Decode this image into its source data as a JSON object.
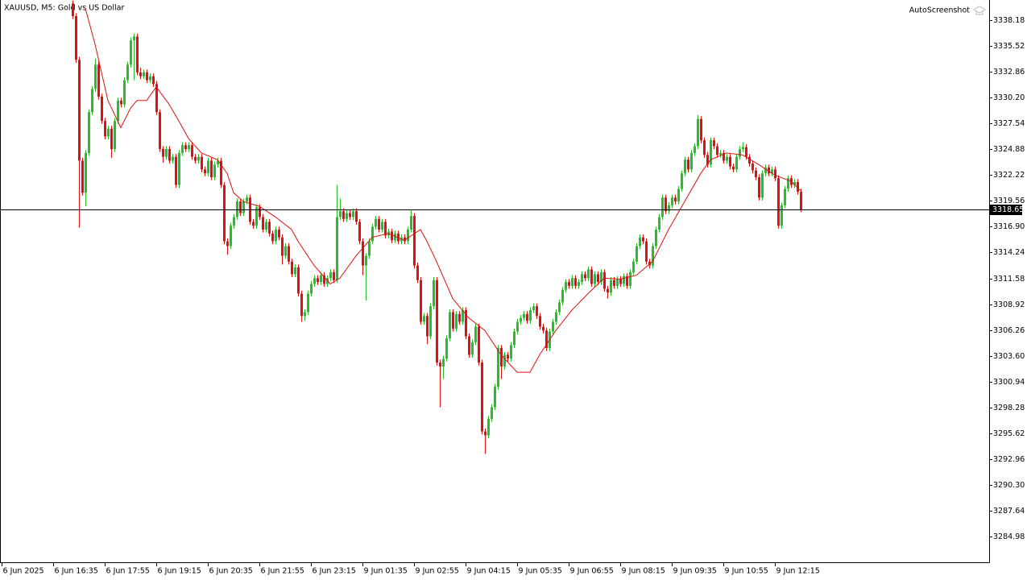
{
  "chart_data": {
    "type": "candlestick",
    "title": "XAUUSD, M5:  Gold vs US Dollar",
    "watermark": "AutoScreenshot",
    "up_color": "#26c026",
    "down_color": "#e01010",
    "xlim": [
      -0.5,
      306.5
    ],
    "xticks": [
      {
        "value": 0,
        "label": "6 Jun 2025"
      },
      {
        "value": 16,
        "label": "6 Jun 16:35"
      },
      {
        "value": 32,
        "label": "6 Jun 17:55"
      },
      {
        "value": 48,
        "label": "6 Jun 19:15"
      },
      {
        "value": 64,
        "label": "6 Jun 20:35"
      },
      {
        "value": 80,
        "label": "6 Jun 21:55"
      },
      {
        "value": 96,
        "label": "6 Jun 23:15"
      },
      {
        "value": 112,
        "label": "9 Jun 01:35"
      },
      {
        "value": 128,
        "label": "9 Jun 02:55"
      },
      {
        "value": 144,
        "label": "9 Jun 04:15"
      },
      {
        "value": 160,
        "label": "9 Jun 05:35"
      },
      {
        "value": 176,
        "label": "9 Jun 06:55"
      },
      {
        "value": 192,
        "label": "9 Jun 08:15"
      },
      {
        "value": 208,
        "label": "9 Jun 09:35"
      },
      {
        "value": 224,
        "label": "9 Jun 10:55"
      },
      {
        "value": 240,
        "label": "9 Jun 12:15"
      }
    ],
    "ylim": [
      3282.32,
      3340.26
    ],
    "yticks": [
      3338.18,
      3335.52,
      3332.86,
      {
        "value": 3330.2,
        "label": "3330.20"
      },
      3327.54,
      3324.88,
      3322.22,
      3319.56,
      {
        "value": 3316.9,
        "label": "3316.90"
      },
      3314.24,
      3311.58,
      3308.92,
      3306.26,
      {
        "value": 3303.6,
        "label": "3303.60"
      },
      3300.94,
      3298.28,
      3295.62,
      3292.96,
      {
        "value": 3290.3,
        "label": "3290.30"
      },
      3287.64,
      3284.98
    ],
    "last_price": 3318.65,
    "last_price_color": "#000000",
    "x": [
      22,
      23,
      24,
      25,
      26,
      27,
      28,
      29,
      30,
      31,
      32,
      33,
      34,
      35,
      36,
      37,
      38,
      39,
      40,
      41,
      42,
      43,
      44,
      45,
      46,
      47,
      48,
      49,
      50,
      51,
      52,
      53,
      54,
      55,
      56,
      57,
      58,
      59,
      60,
      61,
      62,
      63,
      64,
      65,
      66,
      67,
      68,
      69,
      70,
      71,
      72,
      73,
      74,
      75,
      76,
      77,
      78,
      79,
      80,
      81,
      82,
      83,
      84,
      85,
      86,
      87,
      88,
      89,
      90,
      91,
      92,
      93,
      94,
      95,
      96,
      97,
      98,
      99,
      100,
      101,
      102,
      103,
      104,
      105,
      106,
      107,
      108,
      109,
      110,
      111,
      112,
      113,
      114,
      115,
      116,
      117,
      118,
      119,
      120,
      121,
      122,
      123,
      124,
      125,
      126,
      127,
      128,
      129,
      130,
      131,
      132,
      133,
      134,
      135,
      136,
      137,
      138,
      139,
      140,
      141,
      142,
      143,
      144,
      145,
      146,
      147,
      148,
      149,
      150,
      151,
      152,
      153,
      154,
      155,
      156,
      157,
      158,
      159,
      160,
      161,
      162,
      163,
      164,
      165,
      166,
      167,
      168,
      169,
      170,
      171,
      172,
      173,
      174,
      175,
      176,
      177,
      178,
      179,
      180,
      181,
      182,
      183,
      184,
      185,
      186,
      187,
      188,
      189,
      190,
      191,
      192,
      193,
      194,
      195,
      196,
      197,
      198,
      199,
      200,
      201,
      202,
      203,
      204,
      205,
      206,
      207,
      208,
      209,
      210,
      211,
      212,
      213,
      214,
      215,
      216,
      217,
      218,
      219,
      220,
      221,
      222,
      223,
      224,
      225,
      226,
      227,
      228,
      229,
      230,
      231,
      232,
      233,
      234,
      235,
      236,
      237,
      238,
      239,
      240,
      241,
      242,
      243,
      244,
      245,
      246,
      247,
      248
    ],
    "open": [
      3339.9,
      3338.6,
      3334.1,
      3323.7,
      3320.4,
      3324.5,
      3328.7,
      3331.1,
      3333.6,
      3330.3,
      3327.8,
      3326.2,
      3327.0,
      3324.9,
      3327.8,
      3329.9,
      3329.5,
      3332.0,
      3333.6,
      3336.1,
      3336.5,
      3332.8,
      3332.4,
      3332.8,
      3332.0,
      3332.4,
      3331.6,
      3328.7,
      3324.9,
      3324.1,
      3324.9,
      3323.7,
      3324.1,
      3321.2,
      3324.5,
      3325.3,
      3324.9,
      3325.3,
      3324.1,
      3323.7,
      3324.1,
      3322.8,
      3322.4,
      3323.7,
      3322.0,
      3323.3,
      3323.7,
      3321.2,
      3315.4,
      3314.9,
      3317.0,
      3317.9,
      3319.5,
      3318.3,
      3319.5,
      3319.9,
      3317.4,
      3317.0,
      3318.9,
      3317.9,
      3316.6,
      3317.4,
      3316.2,
      3315.4,
      3316.6,
      3315.8,
      3313.9,
      3314.9,
      3313.3,
      3312.0,
      3312.7,
      3310.0,
      3307.7,
      3308.1,
      3310.0,
      3311.0,
      3311.6,
      3311.2,
      3311.9,
      3311.0,
      3311.6,
      3312.2,
      3311.4,
      3317.9,
      3318.5,
      3317.7,
      3318.3,
      3317.9,
      3318.5,
      3317.4,
      3315.4,
      3312.9,
      3313.9,
      3315.4,
      3316.9,
      3317.7,
      3316.6,
      3317.4,
      3316.0,
      3316.4,
      3315.5,
      3316.2,
      3315.4,
      3315.8,
      3315.4,
      3316.6,
      3318.0,
      3312.9,
      3311.4,
      3307.1,
      3307.7,
      3305.6,
      3308.7,
      3311.4,
      3302.9,
      3302.5,
      3303.3,
      3305.4,
      3308.1,
      3306.4,
      3307.9,
      3307.1,
      3308.3,
      3305.6,
      3303.7,
      3305.0,
      3306.6,
      3302.9,
      3295.8,
      3295.4,
      3297.1,
      3298.3,
      3300.4,
      3304.4,
      3302.5,
      3303.7,
      3303.3,
      3304.7,
      3306.1,
      3307.1,
      3307.5,
      3307.9,
      3307.2,
      3308.3,
      3308.7,
      3307.7,
      3306.6,
      3306.2,
      3304.4,
      3306.1,
      3307.1,
      3308.1,
      3309.1,
      3310.4,
      3311.2,
      3310.8,
      3311.6,
      3310.8,
      3311.2,
      3312.0,
      3311.6,
      3312.5,
      3311.0,
      3312.0,
      3311.2,
      3312.2,
      3310.5,
      3310.1,
      3311.4,
      3310.8,
      3311.5,
      3311.0,
      3311.8,
      3310.8,
      3312.2,
      3313.3,
      3314.9,
      3315.8,
      3315.4,
      3313.3,
      3312.9,
      3314.9,
      3316.6,
      3317.9,
      3319.9,
      3318.5,
      3319.1,
      3319.9,
      3319.5,
      3320.8,
      3322.4,
      3323.8,
      3322.8,
      3324.5,
      3325.2,
      3328.0,
      3325.8,
      3324.3,
      3323.3,
      3325.8,
      3325.2,
      3324.3,
      3324.5,
      3323.7,
      3324.1,
      3323.1,
      3322.8,
      3324.1,
      3324.9,
      3325.1,
      3324.1,
      3323.4,
      3322.7,
      3322.0,
      3319.9,
      3322.4,
      3323.0,
      3322.4,
      3322.8,
      3321.9,
      3317.0,
      3319.1,
      3320.8,
      3321.9,
      3321.2,
      3321.5,
      3320.5
    ],
    "high": [
      3340.2,
      3338.9,
      3334.4,
      3324.0,
      3324.8,
      3329.0,
      3331.4,
      3334.2,
      3333.9,
      3330.6,
      3328.1,
      3327.3,
      3327.3,
      3328.1,
      3330.2,
      3330.2,
      3332.3,
      3333.9,
      3336.4,
      3336.8,
      3336.8,
      3333.3,
      3333.1,
      3333.1,
      3332.7,
      3332.7,
      3331.9,
      3329.0,
      3325.2,
      3325.2,
      3325.2,
      3324.4,
      3324.4,
      3324.8,
      3325.6,
      3325.6,
      3325.6,
      3325.6,
      3324.4,
      3324.4,
      3324.4,
      3323.1,
      3324.0,
      3324.0,
      3323.6,
      3324.0,
      3324.0,
      3321.5,
      3315.7,
      3317.3,
      3318.2,
      3319.8,
      3319.8,
      3319.8,
      3320.2,
      3320.2,
      3317.7,
      3319.2,
      3319.2,
      3318.2,
      3317.7,
      3317.7,
      3316.5,
      3316.9,
      3316.9,
      3316.1,
      3315.2,
      3315.2,
      3313.6,
      3313.0,
      3313.0,
      3310.3,
      3308.4,
      3310.3,
      3311.3,
      3311.9,
      3311.9,
      3312.2,
      3312.2,
      3311.9,
      3312.5,
      3312.5,
      3321.2,
      3319.8,
      3318.8,
      3318.6,
      3318.6,
      3318.8,
      3318.8,
      3317.7,
      3315.7,
      3314.2,
      3315.7,
      3317.2,
      3318.0,
      3318.0,
      3317.7,
      3317.7,
      3316.7,
      3316.7,
      3316.5,
      3316.5,
      3316.1,
      3316.1,
      3316.9,
      3318.6,
      3318.3,
      3313.2,
      3311.7,
      3308.0,
      3308.0,
      3309.0,
      3311.7,
      3311.7,
      3303.2,
      3303.6,
      3305.7,
      3308.4,
      3308.4,
      3308.2,
      3308.2,
      3308.6,
      3308.6,
      3305.9,
      3305.3,
      3306.9,
      3306.9,
      3303.2,
      3296.1,
      3297.4,
      3298.6,
      3300.7,
      3304.7,
      3304.7,
      3304.0,
      3304.0,
      3305.0,
      3306.4,
      3307.4,
      3307.8,
      3308.2,
      3308.2,
      3308.6,
      3309.0,
      3309.0,
      3308.0,
      3306.9,
      3306.5,
      3306.4,
      3307.4,
      3308.4,
      3309.4,
      3310.7,
      3311.5,
      3311.5,
      3311.9,
      3311.9,
      3311.5,
      3312.3,
      3312.3,
      3312.8,
      3312.8,
      3312.3,
      3312.3,
      3312.5,
      3312.5,
      3310.8,
      3311.7,
      3311.7,
      3311.8,
      3311.8,
      3312.1,
      3312.1,
      3312.5,
      3313.6,
      3315.2,
      3316.1,
      3316.1,
      3315.7,
      3313.6,
      3315.2,
      3316.9,
      3318.2,
      3320.2,
      3320.2,
      3319.4,
      3320.2,
      3320.2,
      3321.1,
      3322.7,
      3324.1,
      3324.1,
      3324.8,
      3325.5,
      3328.4,
      3328.3,
      3326.1,
      3324.6,
      3326.1,
      3326.1,
      3325.5,
      3324.8,
      3324.8,
      3324.4,
      3324.4,
      3323.4,
      3324.4,
      3325.2,
      3325.6,
      3325.4,
      3324.4,
      3323.7,
      3323.0,
      3322.3,
      3322.7,
      3323.3,
      3323.3,
      3323.1,
      3323.1,
      3322.2,
      3319.4,
      3321.1,
      3322.2,
      3322.2,
      3321.8,
      3321.8,
      3320.8
    ],
    "low": [
      3338.3,
      3333.8,
      3316.8,
      3320.1,
      3319.0,
      3324.2,
      3328.4,
      3330.8,
      3330.0,
      3327.5,
      3325.9,
      3325.9,
      3324.0,
      3324.6,
      3327.5,
      3329.2,
      3329.2,
      3331.7,
      3333.3,
      3332.0,
      3332.5,
      3332.1,
      3332.1,
      3331.7,
      3331.7,
      3331.3,
      3328.4,
      3324.6,
      3323.5,
      3323.8,
      3323.4,
      3323.4,
      3320.9,
      3320.9,
      3324.2,
      3324.6,
      3324.6,
      3323.8,
      3323.4,
      3323.4,
      3322.5,
      3322.1,
      3322.1,
      3321.7,
      3321.7,
      3323.0,
      3320.9,
      3315.1,
      3314.0,
      3314.6,
      3316.7,
      3317.6,
      3318.0,
      3318.0,
      3319.2,
      3317.1,
      3316.7,
      3316.7,
      3317.6,
      3316.3,
      3316.3,
      3315.9,
      3315.1,
      3315.1,
      3315.5,
      3313.0,
      3313.6,
      3313.0,
      3311.7,
      3311.7,
      3309.7,
      3307.1,
      3307.2,
      3307.8,
      3309.7,
      3310.7,
      3310.9,
      3310.9,
      3310.7,
      3310.7,
      3311.3,
      3311.1,
      3311.1,
      3317.6,
      3317.4,
      3317.4,
      3317.6,
      3317.6,
      3317.1,
      3315.1,
      3311.9,
      3309.3,
      3313.6,
      3315.1,
      3316.6,
      3316.3,
      3316.3,
      3315.7,
      3315.7,
      3315.2,
      3315.2,
      3315.1,
      3315.1,
      3315.1,
      3315.1,
      3316.3,
      3312.6,
      3311.1,
      3306.8,
      3306.8,
      3304.8,
      3305.3,
      3308.4,
      3302.6,
      3298.3,
      3301.2,
      3303.0,
      3305.1,
      3306.1,
      3306.1,
      3306.8,
      3306.8,
      3305.3,
      3303.4,
      3303.4,
      3304.7,
      3302.6,
      3295.5,
      3293.5,
      3295.1,
      3296.8,
      3298.0,
      3300.1,
      3301.2,
      3302.2,
      3303.0,
      3303.0,
      3304.4,
      3305.8,
      3306.8,
      3307.2,
      3306.9,
      3306.9,
      3308.0,
      3307.4,
      3306.3,
      3305.9,
      3304.1,
      3304.1,
      3305.8,
      3306.8,
      3307.8,
      3308.8,
      3310.1,
      3310.5,
      3310.5,
      3310.5,
      3310.5,
      3310.9,
      3311.3,
      3311.3,
      3310.7,
      3310.7,
      3310.9,
      3310.9,
      3310.2,
      3309.5,
      3309.8,
      3310.5,
      3310.5,
      3310.7,
      3310.7,
      3310.5,
      3310.5,
      3311.9,
      3313.0,
      3314.6,
      3315.1,
      3313.0,
      3312.6,
      3312.6,
      3314.6,
      3316.3,
      3317.6,
      3318.2,
      3318.2,
      3318.8,
      3319.2,
      3319.2,
      3320.5,
      3322.1,
      3322.5,
      3322.5,
      3324.2,
      3324.9,
      3325.5,
      3324.0,
      3323.0,
      3323.0,
      3324.9,
      3324.0,
      3324.0,
      3323.4,
      3323.4,
      3322.8,
      3322.5,
      3322.5,
      3323.8,
      3324.6,
      3323.8,
      3323.1,
      3322.4,
      3321.7,
      3319.6,
      3319.6,
      3322.1,
      3322.1,
      3322.1,
      3321.6,
      3316.7,
      3316.7,
      3318.8,
      3320.5,
      3320.9,
      3320.9,
      3320.2,
      3318.4
    ],
    "close": [
      3338.6,
      3334.1,
      3323.7,
      3320.4,
      3324.5,
      3328.7,
      3331.1,
      3333.6,
      3330.3,
      3327.8,
      3326.2,
      3327.0,
      3324.9,
      3327.8,
      3329.9,
      3329.5,
      3332.0,
      3333.6,
      3336.1,
      3336.5,
      3332.8,
      3332.4,
      3332.8,
      3332.0,
      3332.4,
      3331.6,
      3328.7,
      3324.9,
      3324.1,
      3324.9,
      3323.7,
      3324.1,
      3321.2,
      3324.5,
      3325.3,
      3324.9,
      3325.3,
      3324.1,
      3323.7,
      3324.1,
      3322.8,
      3322.4,
      3323.7,
      3322.0,
      3323.3,
      3323.7,
      3321.2,
      3315.4,
      3314.9,
      3317.0,
      3317.9,
      3319.5,
      3318.3,
      3319.5,
      3319.9,
      3317.4,
      3317.0,
      3318.9,
      3317.9,
      3316.6,
      3317.4,
      3316.2,
      3315.4,
      3316.6,
      3315.8,
      3313.9,
      3314.9,
      3313.3,
      3312.0,
      3312.7,
      3310.0,
      3307.7,
      3308.1,
      3310.0,
      3311.0,
      3311.6,
      3311.2,
      3311.9,
      3311.0,
      3311.6,
      3312.2,
      3311.4,
      3317.9,
      3318.5,
      3317.7,
      3318.3,
      3317.9,
      3318.5,
      3317.4,
      3315.4,
      3312.9,
      3313.9,
      3315.4,
      3316.9,
      3317.7,
      3316.6,
      3317.4,
      3316.0,
      3316.4,
      3315.5,
      3316.2,
      3315.4,
      3315.8,
      3315.4,
      3316.6,
      3318.0,
      3312.9,
      3311.4,
      3307.1,
      3307.7,
      3305.6,
      3308.7,
      3311.4,
      3302.9,
      3302.5,
      3303.3,
      3305.4,
      3308.1,
      3306.4,
      3307.9,
      3307.1,
      3308.3,
      3305.6,
      3303.7,
      3305.0,
      3306.6,
      3302.9,
      3295.8,
      3295.4,
      3297.1,
      3298.3,
      3300.4,
      3304.4,
      3302.5,
      3303.7,
      3303.3,
      3304.7,
      3306.1,
      3307.1,
      3307.5,
      3307.9,
      3307.2,
      3308.3,
      3308.7,
      3307.7,
      3306.6,
      3306.2,
      3304.4,
      3306.1,
      3307.1,
      3308.1,
      3309.1,
      3310.4,
      3311.2,
      3310.8,
      3311.6,
      3310.8,
      3311.2,
      3312.0,
      3311.6,
      3312.5,
      3311.0,
      3312.0,
      3311.2,
      3312.2,
      3310.5,
      3310.1,
      3311.4,
      3310.8,
      3311.5,
      3311.0,
      3311.8,
      3310.8,
      3312.2,
      3313.3,
      3314.9,
      3315.8,
      3315.4,
      3313.3,
      3312.9,
      3314.9,
      3316.6,
      3317.9,
      3319.9,
      3318.5,
      3319.1,
      3319.9,
      3319.5,
      3320.8,
      3322.4,
      3323.8,
      3322.8,
      3324.5,
      3325.2,
      3328.0,
      3325.8,
      3324.3,
      3323.3,
      3325.8,
      3325.2,
      3324.3,
      3324.5,
      3323.7,
      3324.1,
      3323.1,
      3322.8,
      3324.1,
      3324.9,
      3325.1,
      3324.1,
      3323.4,
      3322.7,
      3322.0,
      3319.9,
      3322.4,
      3323.0,
      3322.4,
      3322.8,
      3321.9,
      3317.0,
      3319.1,
      3320.8,
      3321.9,
      3321.2,
      3321.5,
      3320.5,
      3318.65
    ],
    "ma": {
      "color": "#e01010",
      "x": [
        26,
        29,
        33,
        37,
        40,
        42,
        45,
        48,
        52,
        55,
        58,
        62,
        67,
        70,
        72,
        75,
        80,
        85,
        90,
        92,
        97,
        102,
        105,
        110,
        115,
        120,
        125,
        130,
        132,
        135,
        140,
        145,
        150,
        155,
        160,
        164,
        167,
        172,
        177,
        182,
        187,
        192,
        197,
        202,
        207,
        212,
        217,
        220,
        225,
        230,
        235,
        240,
        245,
        248
      ],
      "values": [
        3339.4,
        3335.7,
        3329.9,
        3327.1,
        3329.1,
        3329.9,
        3329.9,
        3331.3,
        3329.5,
        3327.8,
        3326.0,
        3324.5,
        3323.8,
        3322.4,
        3320.4,
        3319.5,
        3319.0,
        3317.9,
        3316.6,
        3315.4,
        3312.9,
        3311.0,
        3311.6,
        3313.9,
        3315.8,
        3316.2,
        3315.5,
        3316.6,
        3315.4,
        3313.3,
        3309.5,
        3307.5,
        3306.2,
        3303.7,
        3301.9,
        3301.9,
        3303.7,
        3306.2,
        3308.3,
        3310.0,
        3311.6,
        3311.5,
        3311.9,
        3313.3,
        3316.6,
        3319.5,
        3322.4,
        3323.8,
        3324.5,
        3324.3,
        3323.3,
        3322.2,
        3321.6,
        3320.6
      ]
    }
  }
}
